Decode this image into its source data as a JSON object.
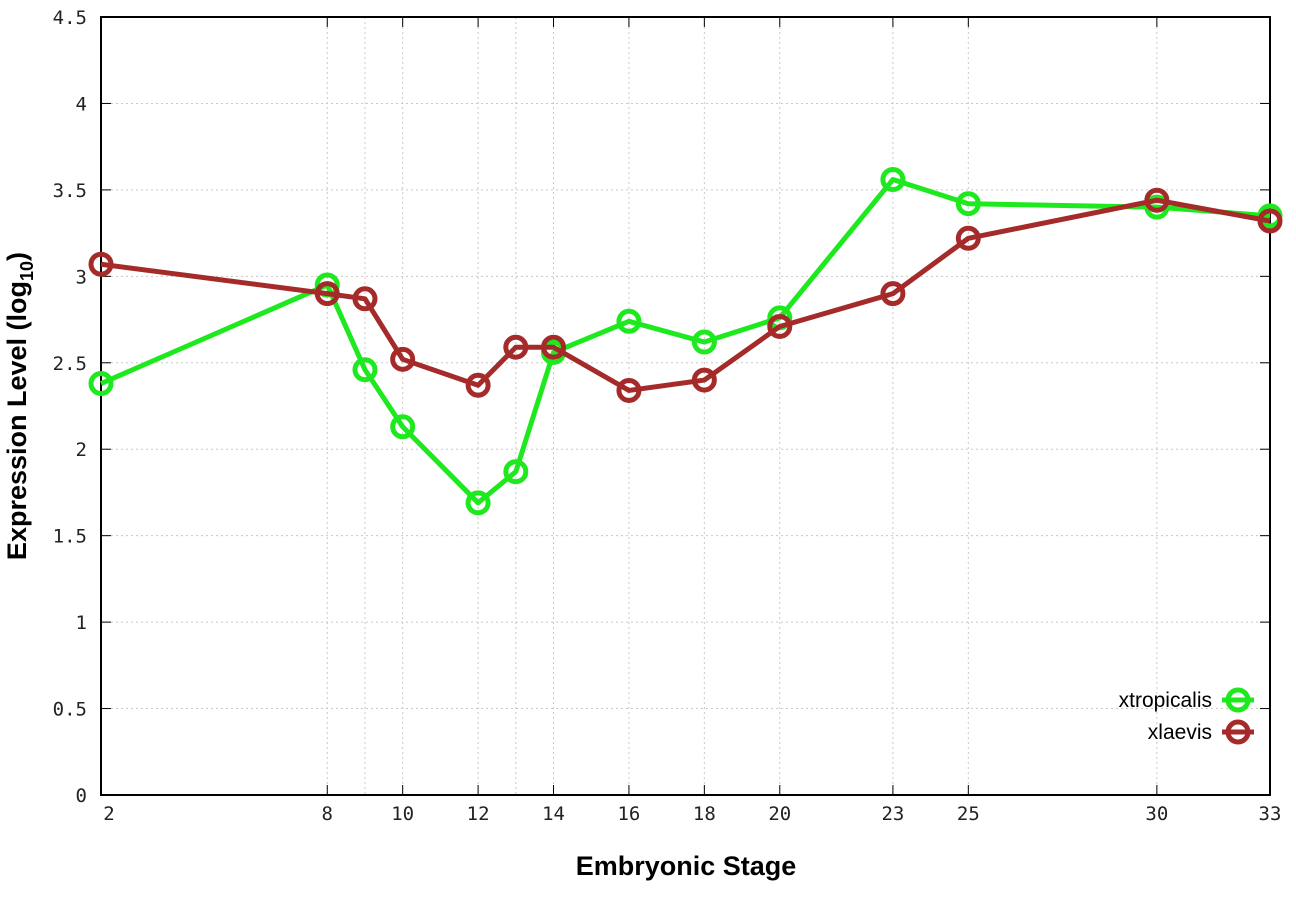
{
  "chart_data": {
    "type": "line",
    "title": "",
    "xlabel": "Embryonic Stage",
    "ylabel": "Expression Level (log",
    "ylabel_sub": "10",
    "ylabel_close": ")",
    "xlim": [
      2,
      33
    ],
    "ylim": [
      0,
      4.5
    ],
    "grid": true,
    "legend_placement": "bottom-right",
    "x_ticks": [
      2,
      8,
      10,
      12,
      14,
      16,
      18,
      20,
      23,
      25,
      30,
      33
    ],
    "x_grid_at": [
      8,
      9,
      10,
      12,
      13,
      14,
      16,
      18,
      20,
      23,
      25,
      30
    ],
    "y_ticks": [
      0,
      0.5,
      1,
      1.5,
      2,
      2.5,
      3,
      3.5,
      4,
      4.5
    ],
    "y_tick_labels": [
      "0",
      "0.5",
      "1",
      "1.5",
      "2",
      "2.5",
      "3",
      "3.5",
      "4",
      "4.5"
    ],
    "x": [
      2,
      8,
      9,
      10,
      12,
      13,
      14,
      16,
      18,
      20,
      23,
      25,
      30,
      33
    ],
    "series": [
      {
        "name": "xtropicalis",
        "color": "#1ee81e",
        "values": [
          2.38,
          2.95,
          2.46,
          2.13,
          1.69,
          1.87,
          2.56,
          2.74,
          2.62,
          2.76,
          3.56,
          3.42,
          3.4,
          3.35
        ]
      },
      {
        "name": "xlaevis",
        "color": "#a52a2a",
        "values": [
          3.07,
          2.9,
          2.87,
          2.52,
          2.37,
          2.59,
          2.59,
          2.34,
          2.4,
          2.71,
          2.9,
          3.22,
          3.44,
          3.32
        ]
      }
    ]
  }
}
